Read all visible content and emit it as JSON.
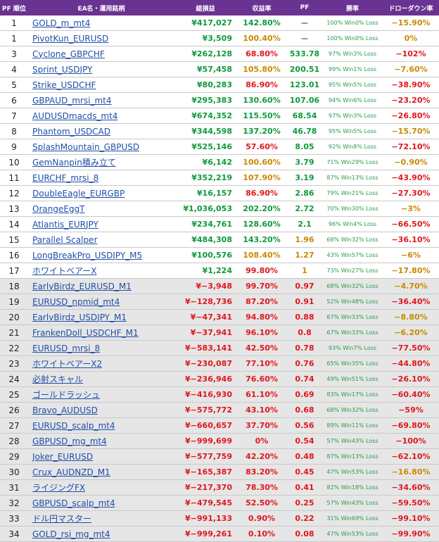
{
  "headers": [
    "PF 順位",
    "EA名・運用銘柄",
    "総損益",
    "収益率",
    "PF",
    "勝率",
    "ドローダウン率"
  ],
  "rows": [
    {
      "rank": "1",
      "name": "GOLD_m_mt4",
      "profit": "¥417,027",
      "profit_c": "g",
      "rate": "142.80%",
      "rate_c": "g",
      "pf": "ー",
      "pf_c": "k",
      "win": "100% Win0% Loss",
      "dd": "−15.90%",
      "dd_c": "o"
    },
    {
      "rank": "1",
      "name": "PivotKun_EURUSD",
      "profit": "¥3,509",
      "profit_c": "g",
      "rate": "100.40%",
      "rate_c": "o",
      "pf": "ー",
      "pf_c": "k",
      "win": "100% Win0% Loss",
      "dd": "0%",
      "dd_c": "o"
    },
    {
      "rank": "3",
      "name": "Cyclone_GBPCHF",
      "profit": "¥262,128",
      "profit_c": "g",
      "rate": "68.80%",
      "rate_c": "r",
      "pf": "533.78",
      "pf_c": "g",
      "win": "97% Win3% Loss",
      "dd": "−102%",
      "dd_c": "r"
    },
    {
      "rank": "4",
      "name": "Sprint_USDJPY",
      "profit": "¥57,458",
      "profit_c": "g",
      "rate": "105.80%",
      "rate_c": "o",
      "pf": "200.51",
      "pf_c": "g",
      "win": "99% Win1% Loss",
      "dd": "−7.60%",
      "dd_c": "o"
    },
    {
      "rank": "5",
      "name": "Strike_USDCHF",
      "profit": "¥80,283",
      "profit_c": "g",
      "rate": "86.90%",
      "rate_c": "r",
      "pf": "123.01",
      "pf_c": "g",
      "win": "95% Win5% Loss",
      "dd": "−38.90%",
      "dd_c": "r"
    },
    {
      "rank": "6",
      "name": "GBPAUD_mrsi_mt4",
      "profit": "¥295,383",
      "profit_c": "g",
      "rate": "130.60%",
      "rate_c": "g",
      "pf": "107.06",
      "pf_c": "g",
      "win": "94% Win6% Loss",
      "dd": "−23.20%",
      "dd_c": "r"
    },
    {
      "rank": "7",
      "name": "AUDUSDmacds_mt4",
      "profit": "¥674,352",
      "profit_c": "g",
      "rate": "115.50%",
      "rate_c": "g",
      "pf": "68.54",
      "pf_c": "g",
      "win": "97% Win3% Loss",
      "dd": "−26.80%",
      "dd_c": "r"
    },
    {
      "rank": "8",
      "name": "Phantom_USDCAD",
      "profit": "¥344,598",
      "profit_c": "g",
      "rate": "137.20%",
      "rate_c": "g",
      "pf": "46.78",
      "pf_c": "g",
      "win": "95% Win5% Loss",
      "dd": "−15.70%",
      "dd_c": "o"
    },
    {
      "rank": "9",
      "name": "SplashMountain_GBPUSD",
      "profit": "¥525,146",
      "profit_c": "g",
      "rate": "57.60%",
      "rate_c": "r",
      "pf": "8.05",
      "pf_c": "g",
      "win": "92% Win8% Loss",
      "dd": "−72.10%",
      "dd_c": "r"
    },
    {
      "rank": "10",
      "name": "GemNanpin積み立て",
      "profit": "¥6,142",
      "profit_c": "g",
      "rate": "100.60%",
      "rate_c": "o",
      "pf": "3.79",
      "pf_c": "g",
      "win": "71% Win29% Loss",
      "dd": "−0.90%",
      "dd_c": "o"
    },
    {
      "rank": "11",
      "name": "EURCHF_mrsi_8",
      "profit": "¥352,219",
      "profit_c": "g",
      "rate": "107.90%",
      "rate_c": "o",
      "pf": "3.19",
      "pf_c": "g",
      "win": "87% Win13% Loss",
      "dd": "−43.90%",
      "dd_c": "r"
    },
    {
      "rank": "12",
      "name": "DoubleEagle_EURGBP",
      "profit": "¥16,157",
      "profit_c": "g",
      "rate": "86.90%",
      "rate_c": "r",
      "pf": "2.86",
      "pf_c": "g",
      "win": "79% Win21% Loss",
      "dd": "−27.30%",
      "dd_c": "r"
    },
    {
      "rank": "13",
      "name": "OrangeEggT",
      "profit": "¥1,036,053",
      "profit_c": "g",
      "rate": "202.20%",
      "rate_c": "g",
      "pf": "2.72",
      "pf_c": "g",
      "win": "70% Win30% Loss",
      "dd": "−3%",
      "dd_c": "o"
    },
    {
      "rank": "14",
      "name": "Atlantis_EURJPY",
      "profit": "¥234,761",
      "profit_c": "g",
      "rate": "128.60%",
      "rate_c": "g",
      "pf": "2.1",
      "pf_c": "g",
      "win": "96% Win4% Loss",
      "dd": "−66.50%",
      "dd_c": "r"
    },
    {
      "rank": "15",
      "name": "Parallel Scalper",
      "profit": "¥484,308",
      "profit_c": "g",
      "rate": "143.20%",
      "rate_c": "g",
      "pf": "1.96",
      "pf_c": "o",
      "win": "68% Win32% Loss",
      "dd": "−36.10%",
      "dd_c": "r"
    },
    {
      "rank": "16",
      "name": "LongBreakPro_USDJPY_M5",
      "profit": "¥100,576",
      "profit_c": "g",
      "rate": "108.40%",
      "rate_c": "o",
      "pf": "1.27",
      "pf_c": "o",
      "win": "43% Win57% Loss",
      "dd": "−6%",
      "dd_c": "o"
    },
    {
      "rank": "17",
      "name": "ホワイトベアーX",
      "profit": "¥1,224",
      "profit_c": "g",
      "rate": "99.80%",
      "rate_c": "r",
      "pf": "1",
      "pf_c": "o",
      "win": "73% Win27% Loss",
      "dd": "−17.80%",
      "dd_c": "o"
    },
    {
      "rank": "18",
      "name": "EarlyBirdz_EURUSD_M1",
      "profit": "¥−3,948",
      "profit_c": "r",
      "rate": "99.70%",
      "rate_c": "r",
      "pf": "0.97",
      "pf_c": "r",
      "win": "68% Win32% Loss",
      "dd": "−4.70%",
      "dd_c": "o"
    },
    {
      "rank": "19",
      "name": "EURUSD_npmid_mt4",
      "profit": "¥−128,736",
      "profit_c": "r",
      "rate": "87.20%",
      "rate_c": "r",
      "pf": "0.91",
      "pf_c": "r",
      "win": "52% Win48% Loss",
      "dd": "−36.40%",
      "dd_c": "r"
    },
    {
      "rank": "20",
      "name": "EarlyBirdz_USDJPY_M1",
      "profit": "¥−47,341",
      "profit_c": "r",
      "rate": "94.80%",
      "rate_c": "r",
      "pf": "0.88",
      "pf_c": "r",
      "win": "67% Win33% Loss",
      "dd": "−8.80%",
      "dd_c": "o"
    },
    {
      "rank": "21",
      "name": "FrankenDoll_USDCHF_M1",
      "profit": "¥−37,941",
      "profit_c": "r",
      "rate": "96.10%",
      "rate_c": "r",
      "pf": "0.8",
      "pf_c": "r",
      "win": "67% Win33% Loss",
      "dd": "−6.20%",
      "dd_c": "o"
    },
    {
      "rank": "22",
      "name": "EURUSD_mrsi_8",
      "profit": "¥−583,141",
      "profit_c": "r",
      "rate": "42.50%",
      "rate_c": "r",
      "pf": "0.78",
      "pf_c": "r",
      "win": "93% Win7% Loss",
      "dd": "−77.50%",
      "dd_c": "r"
    },
    {
      "rank": "23",
      "name": "ホワイトベアーX2",
      "profit": "¥−230,087",
      "profit_c": "r",
      "rate": "77.10%",
      "rate_c": "r",
      "pf": "0.76",
      "pf_c": "r",
      "win": "65% Win35% Loss",
      "dd": "−44.80%",
      "dd_c": "r"
    },
    {
      "rank": "24",
      "name": "必射スキャル",
      "profit": "¥−236,946",
      "profit_c": "r",
      "rate": "76.60%",
      "rate_c": "r",
      "pf": "0.74",
      "pf_c": "r",
      "win": "49% Win51% Loss",
      "dd": "−26.10%",
      "dd_c": "r"
    },
    {
      "rank": "25",
      "name": "ゴールドラッシュ",
      "profit": "¥−416,930",
      "profit_c": "r",
      "rate": "61.10%",
      "rate_c": "r",
      "pf": "0.69",
      "pf_c": "r",
      "win": "83% Win17% Loss",
      "dd": "−60.40%",
      "dd_c": "r"
    },
    {
      "rank": "26",
      "name": "Bravo_AUDUSD",
      "profit": "¥−575,772",
      "profit_c": "r",
      "rate": "43.10%",
      "rate_c": "r",
      "pf": "0.68",
      "pf_c": "r",
      "win": "68% Win32% Loss",
      "dd": "−59%",
      "dd_c": "r"
    },
    {
      "rank": "27",
      "name": "EURUSD_scalp_mt4",
      "profit": "¥−660,657",
      "profit_c": "r",
      "rate": "37.70%",
      "rate_c": "r",
      "pf": "0.56",
      "pf_c": "r",
      "win": "89% Win11% Loss",
      "dd": "−69.80%",
      "dd_c": "r"
    },
    {
      "rank": "28",
      "name": "GBPUSD_mg_mt4",
      "profit": "¥−999,699",
      "profit_c": "r",
      "rate": "0%",
      "rate_c": "r",
      "pf": "0.54",
      "pf_c": "r",
      "win": "57% Win43% Loss",
      "dd": "−100%",
      "dd_c": "r"
    },
    {
      "rank": "29",
      "name": "Joker_EURUSD",
      "profit": "¥−577,759",
      "profit_c": "r",
      "rate": "42.20%",
      "rate_c": "r",
      "pf": "0.48",
      "pf_c": "r",
      "win": "87% Win13% Loss",
      "dd": "−62.10%",
      "dd_c": "r"
    },
    {
      "rank": "30",
      "name": "Crux_AUDNZD_M1",
      "profit": "¥−165,387",
      "profit_c": "r",
      "rate": "83.20%",
      "rate_c": "r",
      "pf": "0.45",
      "pf_c": "r",
      "win": "47% Win53% Loss",
      "dd": "−16.80%",
      "dd_c": "o"
    },
    {
      "rank": "31",
      "name": "ライジングFX",
      "profit": "¥−217,370",
      "profit_c": "r",
      "rate": "78.30%",
      "rate_c": "r",
      "pf": "0.41",
      "pf_c": "r",
      "win": "82% Win18% Loss",
      "dd": "−34.60%",
      "dd_c": "r"
    },
    {
      "rank": "32",
      "name": "GBPUSD_scalp_mt4",
      "profit": "¥−479,545",
      "profit_c": "r",
      "rate": "52.50%",
      "rate_c": "r",
      "pf": "0.25",
      "pf_c": "r",
      "win": "57% Win43% Loss",
      "dd": "−59.50%",
      "dd_c": "r"
    },
    {
      "rank": "33",
      "name": "ドル円マスター",
      "profit": "¥−991,133",
      "profit_c": "r",
      "rate": "0.90%",
      "rate_c": "r",
      "pf": "0.22",
      "pf_c": "r",
      "win": "31% Win69% Loss",
      "dd": "−99.10%",
      "dd_c": "r"
    },
    {
      "rank": "34",
      "name": "GOLD_rsi_mg_mt4",
      "profit": "¥−999,261",
      "profit_c": "r",
      "rate": "0.10%",
      "rate_c": "r",
      "pf": "0.08",
      "pf_c": "r",
      "win": "47% Win53% Loss",
      "dd": "−99.90%",
      "dd_c": "r"
    }
  ]
}
